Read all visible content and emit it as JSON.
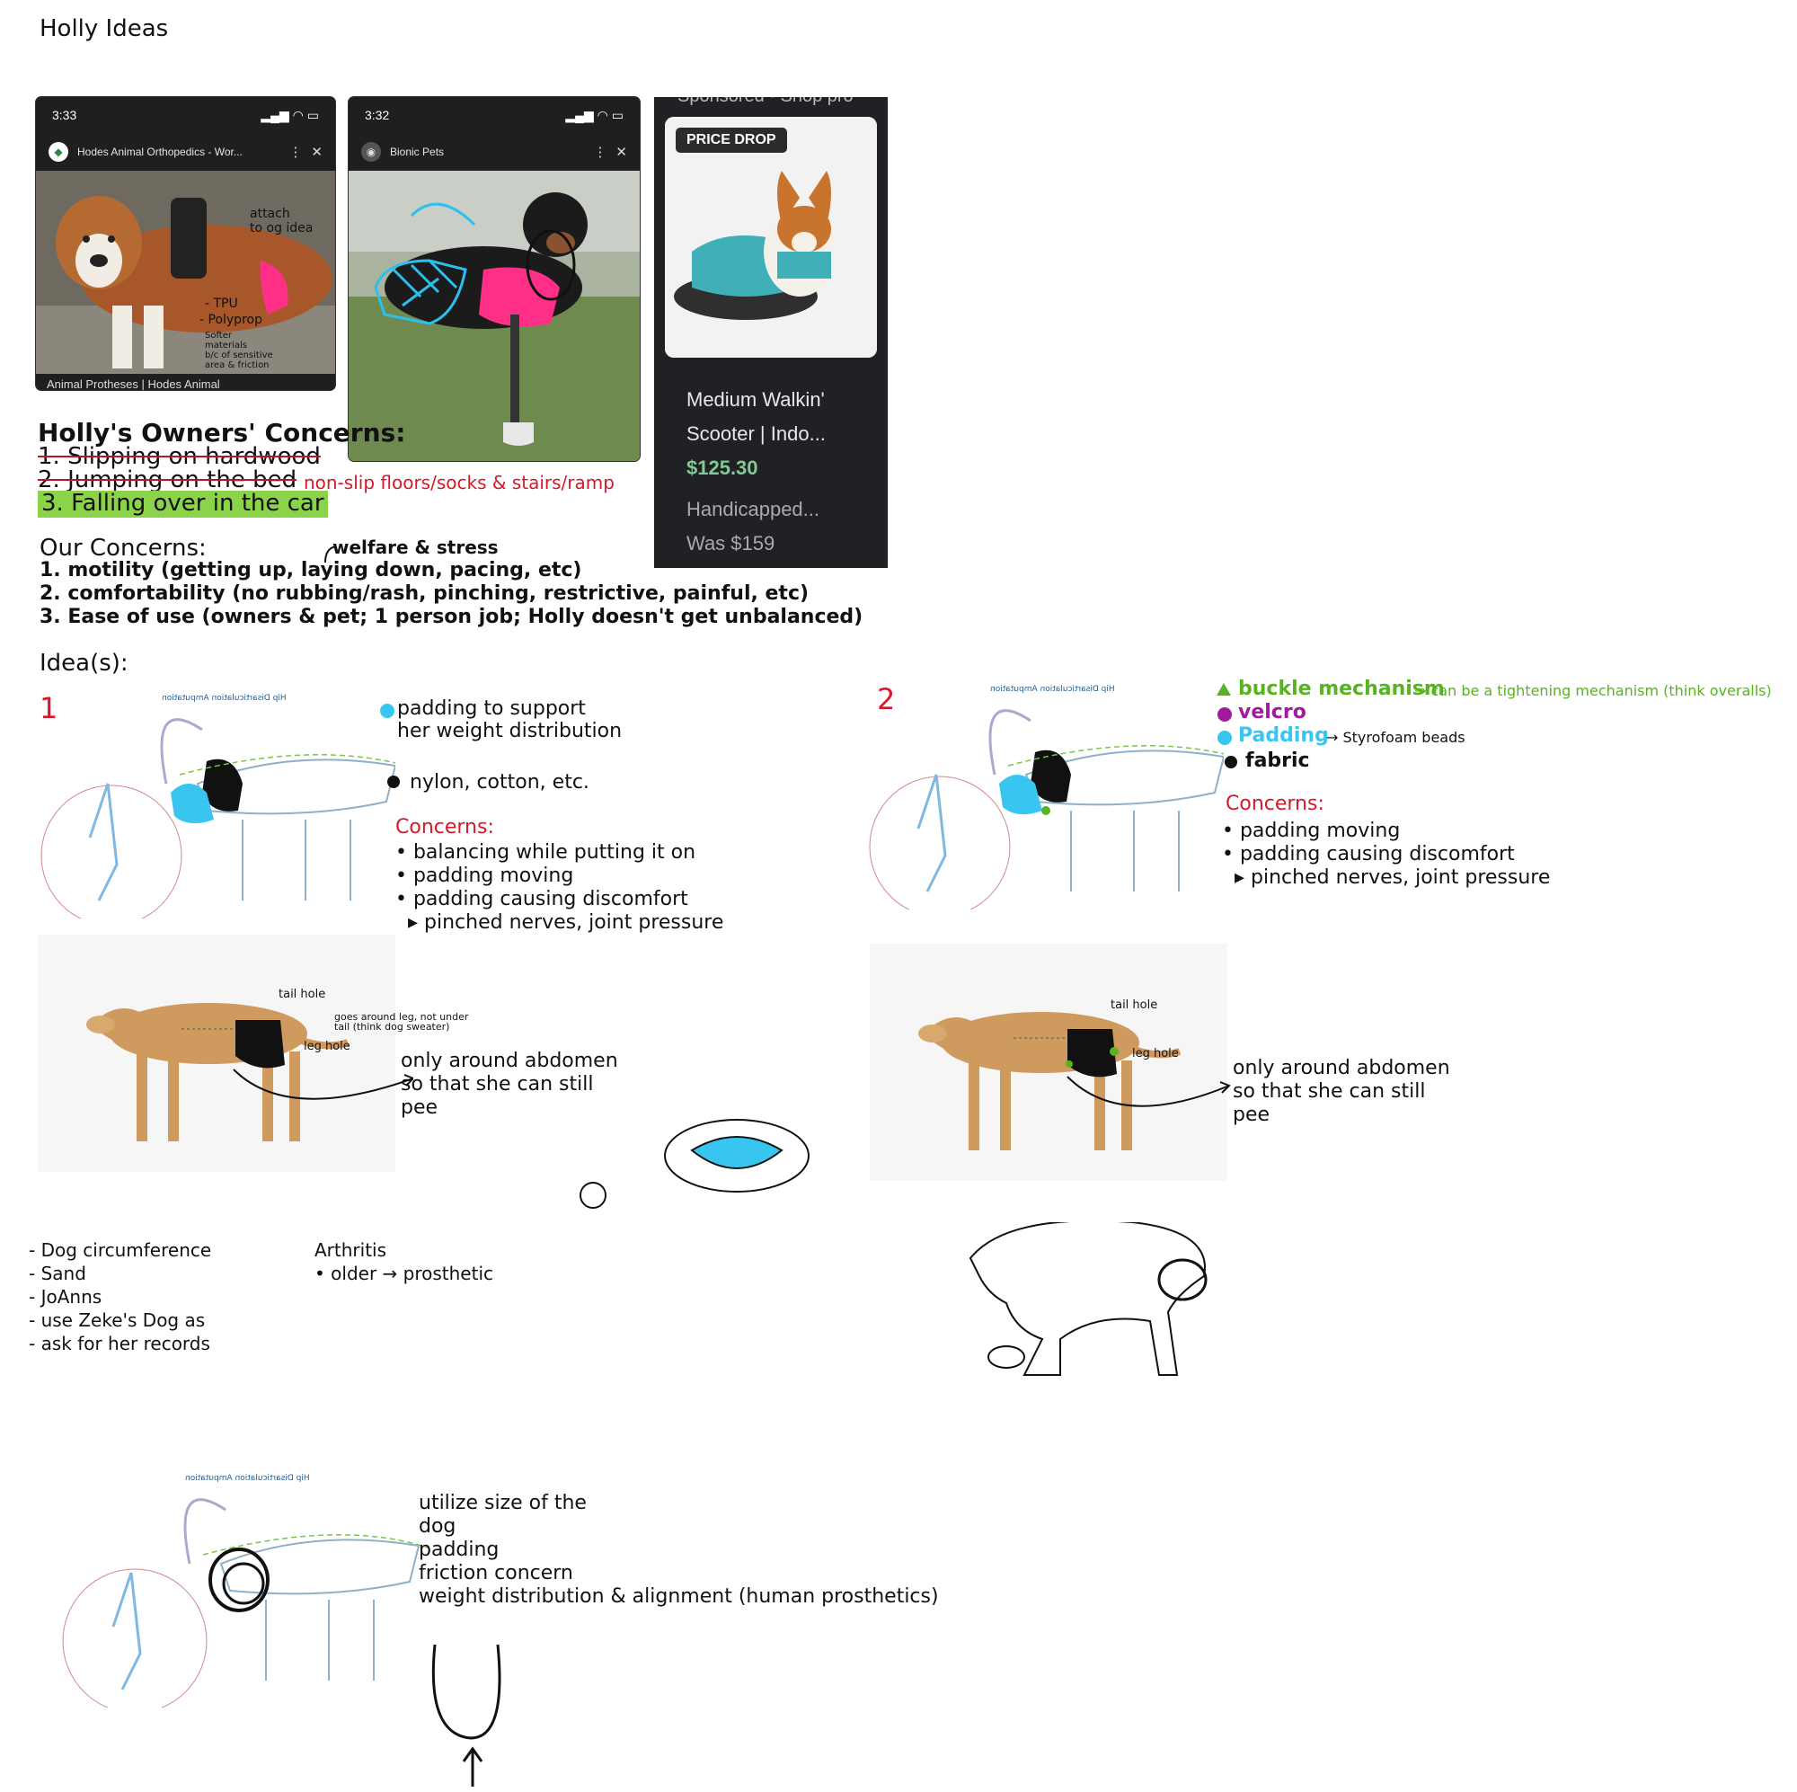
{
  "page_title": "Holly Ideas",
  "phone1": {
    "time": "3:33",
    "site": "Hodes Animal Orthopedics - Wor...",
    "caption": "Animal Protheses | Hodes Animal",
    "annotations": {
      "attach": "attach\nto og idea",
      "tpu": "- TPU",
      "polyprop": "- Polyprop",
      "softer": "Softer\nmaterials\nb/c of sensitive\narea & friction"
    }
  },
  "phone2": {
    "time": "3:32",
    "site": "Bionic Pets"
  },
  "product_card": {
    "sponsored": "Sponsored · Shop pro",
    "badge": "PRICE DROP",
    "title": "Medium Walkin'\nScooter | Indo...",
    "price": "$125.30",
    "sub": "Handicapped...\nWas $159"
  },
  "owners_concerns": {
    "heading": "Holly's Owners' Concerns:",
    "item1": "1. Slipping on hardwood",
    "item2": "2. Jumping on the bed",
    "item2_note": "non-slip floors/socks & stairs/ramp",
    "item3": "3. Falling over in the car"
  },
  "our_concerns": {
    "heading": "Our Concerns:",
    "welfare_note": "welfare & stress",
    "item1": "1. motility (getting up, laying down, pacing, etc)",
    "item2": "2. comfortability (no rubbing/rash, pinching, restrictive, painful, etc)",
    "item3": "3. Ease of use (owners & pet; 1 person job; Holly doesn't get unbalanced)"
  },
  "ideas_heading": "Idea(s):",
  "idea1": {
    "number": "1",
    "diagram_title": "Hip Disarticulation Amputation",
    "legend_padding": "padding to support\nher weight distribution",
    "legend_fabric": "nylon, cotton, etc.",
    "concerns_heading": "Concerns:",
    "concerns": "• balancing while putting it on\n• padding moving\n• padding causing discomfort\n  ▸ pinched nerves, joint pressure",
    "tail_hole": "tail hole",
    "goes_around": "goes around leg, not under\ntail (think dog sweater)",
    "leg_hole": "leg hole",
    "abdomen_note": "only around abdomen\nso that she can still\npee"
  },
  "idea2": {
    "number": "2",
    "diagram_title": "Hip Disarticulation Amputation",
    "legend_buckle": "buckle mechanism",
    "legend_buckle_note": "→ can be a tightening mechanism (think overalls)",
    "legend_velcro": "velcro",
    "legend_padding": "Padding",
    "legend_padding_note": "→ Styrofoam beads",
    "legend_fabric": "fabric",
    "concerns_heading": "Concerns:",
    "concerns": "• padding moving\n• padding causing discomfort\n  ▸ pinched nerves, joint pressure",
    "tail_hole": "tail hole",
    "leg_hole": "leg hole",
    "abdomen_note": "only around abdomen\nso that she can still\npee"
  },
  "notes_left": "- Dog circumference\n- Sand\n- JoAnns\n- use Zeke's Dog as\n- ask for her records",
  "notes_arthritis": "Arthritis\n• older → prosthetic",
  "idea3": {
    "diagram_title": "Hip Disarticulation Amputation",
    "notes": "utilize size of the\ndog\npadding\nfriction concern\nweight distribution & alignment (human prosthetics)"
  },
  "colors": {
    "red": "#d6192a",
    "lime": "#57b41e",
    "purple": "#a01c9c",
    "cyan": "#38c6f0",
    "highlight": "#8bd44a",
    "pink": "#ff2f87"
  }
}
